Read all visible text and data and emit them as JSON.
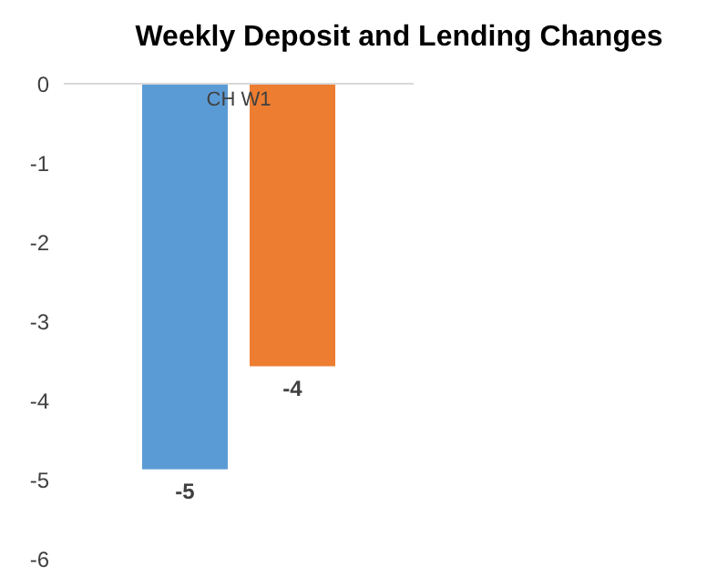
{
  "chart_data": {
    "type": "bar",
    "title": "Weekly Deposit and Lending Changes",
    "categories": [
      "CH W1"
    ],
    "series": [
      {
        "color": "#5b9bd5",
        "values": [
          -4.87
        ],
        "value_labels": [
          "-5"
        ]
      },
      {
        "color": "#ed7d31",
        "values": [
          -3.57
        ],
        "value_labels": [
          "-4"
        ]
      }
    ],
    "ylim": [
      -6,
      0
    ],
    "yticks": [
      0,
      -1,
      -2,
      -3,
      -4,
      -5,
      -6
    ],
    "grid": false,
    "legend": false
  }
}
